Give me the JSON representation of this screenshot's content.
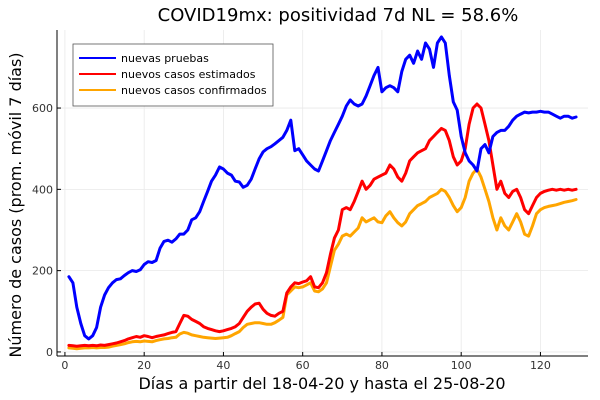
{
  "chart_data": {
    "type": "line",
    "title": "COVID19mx: positividad 7d NL = 58.6%",
    "xlabel": "Días a partir del 18-04-20 y hasta el 25-08-20",
    "ylabel": "Número de casos (prom. móvil 7 días)",
    "xlim": [
      -2,
      132
    ],
    "ylim": [
      -10,
      792
    ],
    "xticks": [
      0,
      20,
      40,
      60,
      80,
      100,
      120
    ],
    "yticks": [
      0,
      200,
      400,
      600
    ],
    "grid": true,
    "legend_position": "top-left",
    "series": [
      {
        "name": "nuevas pruebas",
        "color": "#0000ff",
        "x": [
          1,
          2,
          3,
          4,
          5,
          6,
          7,
          8,
          9,
          10,
          11,
          12,
          13,
          14,
          15,
          16,
          17,
          18,
          19,
          20,
          21,
          22,
          23,
          24,
          25,
          26,
          27,
          28,
          29,
          30,
          31,
          32,
          33,
          34,
          35,
          36,
          37,
          38,
          39,
          40,
          41,
          42,
          43,
          44,
          45,
          46,
          47,
          48,
          49,
          50,
          51,
          52,
          53,
          54,
          55,
          56,
          57,
          58,
          59,
          60,
          61,
          62,
          63,
          64,
          65,
          66,
          67,
          68,
          69,
          70,
          71,
          72,
          73,
          74,
          75,
          76,
          77,
          78,
          79,
          80,
          81,
          82,
          83,
          84,
          85,
          86,
          87,
          88,
          89,
          90,
          91,
          92,
          93,
          94,
          95,
          96,
          97,
          98,
          99,
          100,
          101,
          102,
          103,
          104,
          105,
          106,
          107,
          108,
          109,
          110,
          111,
          112,
          113,
          114,
          115,
          116,
          117,
          118,
          119,
          120,
          121,
          122,
          123,
          124,
          125,
          126,
          127,
          128,
          129
        ],
        "y": [
          185,
          170,
          110,
          70,
          40,
          32,
          40,
          60,
          110,
          140,
          158,
          170,
          178,
          180,
          188,
          195,
          200,
          198,
          202,
          215,
          222,
          220,
          225,
          255,
          272,
          275,
          270,
          278,
          290,
          290,
          300,
          325,
          330,
          345,
          370,
          395,
          420,
          435,
          455,
          450,
          440,
          435,
          420,
          418,
          405,
          410,
          425,
          450,
          475,
          492,
          500,
          505,
          512,
          520,
          528,
          545,
          570,
          495,
          500,
          485,
          470,
          460,
          450,
          445,
          470,
          495,
          520,
          540,
          560,
          580,
          605,
          620,
          610,
          605,
          610,
          630,
          655,
          680,
          700,
          640,
          650,
          655,
          650,
          640,
          690,
          720,
          730,
          710,
          740,
          720,
          760,
          745,
          700,
          760,
          775,
          760,
          680,
          615,
          595,
          530,
          490,
          470,
          460,
          445,
          500,
          510,
          490,
          530,
          540,
          545,
          545,
          555,
          570,
          580,
          585,
          590,
          588,
          590,
          590,
          592,
          590,
          590,
          585,
          580,
          575,
          580,
          580,
          575,
          578
        ]
      },
      {
        "name": "nuevos casos estimados",
        "color": "#ff0000",
        "x": [
          1,
          2,
          3,
          4,
          5,
          6,
          7,
          8,
          9,
          10,
          11,
          12,
          13,
          14,
          15,
          16,
          17,
          18,
          19,
          20,
          21,
          22,
          23,
          24,
          25,
          26,
          27,
          28,
          29,
          30,
          31,
          32,
          33,
          34,
          35,
          36,
          37,
          38,
          39,
          40,
          41,
          42,
          43,
          44,
          45,
          46,
          47,
          48,
          49,
          50,
          51,
          52,
          53,
          54,
          55,
          56,
          57,
          58,
          59,
          60,
          61,
          62,
          63,
          64,
          65,
          66,
          67,
          68,
          69,
          70,
          71,
          72,
          73,
          74,
          75,
          76,
          77,
          78,
          79,
          80,
          81,
          82,
          83,
          84,
          85,
          86,
          87,
          88,
          89,
          90,
          91,
          92,
          93,
          94,
          95,
          96,
          97,
          98,
          99,
          100,
          101,
          102,
          103,
          104,
          105,
          106,
          107,
          108,
          109,
          110,
          111,
          112,
          113,
          114,
          115,
          116,
          117,
          118,
          119,
          120,
          121,
          122,
          123,
          124,
          125,
          126,
          127,
          128,
          129
        ],
        "y": [
          16,
          15,
          14,
          15,
          16,
          15,
          16,
          15,
          17,
          16,
          18,
          20,
          22,
          25,
          28,
          32,
          35,
          38,
          36,
          40,
          38,
          35,
          38,
          40,
          42,
          45,
          48,
          50,
          70,
          90,
          88,
          80,
          75,
          70,
          62,
          58,
          55,
          52,
          50,
          52,
          55,
          58,
          62,
          70,
          85,
          100,
          110,
          118,
          120,
          105,
          95,
          90,
          88,
          95,
          100,
          145,
          160,
          170,
          168,
          172,
          175,
          185,
          160,
          158,
          170,
          195,
          240,
          280,
          300,
          350,
          355,
          350,
          370,
          395,
          420,
          400,
          410,
          425,
          430,
          435,
          440,
          460,
          450,
          430,
          420,
          440,
          470,
          480,
          490,
          495,
          500,
          520,
          530,
          540,
          550,
          545,
          520,
          480,
          460,
          470,
          500,
          560,
          600,
          610,
          600,
          560,
          520,
          460,
          400,
          420,
          390,
          380,
          395,
          400,
          380,
          350,
          340,
          360,
          380,
          390,
          395,
          398,
          400,
          398,
          400,
          398,
          400,
          398,
          400
        ],
        "y_note": "values read from plotted curve"
      },
      {
        "name": "nuevos casos confirmados",
        "color": "#ffa500",
        "x": [
          1,
          2,
          3,
          4,
          5,
          6,
          7,
          8,
          9,
          10,
          11,
          12,
          13,
          14,
          15,
          16,
          17,
          18,
          19,
          20,
          21,
          22,
          23,
          24,
          25,
          26,
          27,
          28,
          29,
          30,
          31,
          32,
          33,
          34,
          35,
          36,
          37,
          38,
          39,
          40,
          41,
          42,
          43,
          44,
          45,
          46,
          47,
          48,
          49,
          50,
          51,
          52,
          53,
          54,
          55,
          56,
          57,
          58,
          59,
          60,
          61,
          62,
          63,
          64,
          65,
          66,
          67,
          68,
          69,
          70,
          71,
          72,
          73,
          74,
          75,
          76,
          77,
          78,
          79,
          80,
          81,
          82,
          83,
          84,
          85,
          86,
          87,
          88,
          89,
          90,
          91,
          92,
          93,
          94,
          95,
          96,
          97,
          98,
          99,
          100,
          101,
          102,
          103,
          104,
          105,
          106,
          107,
          108,
          109,
          110,
          111,
          112,
          113,
          114,
          115,
          116,
          117,
          118,
          119,
          120,
          121,
          122,
          123,
          124,
          125,
          126,
          127,
          128,
          129
        ],
        "y": [
          10,
          9,
          8,
          9,
          10,
          10,
          11,
          10,
          11,
          11,
          12,
          14,
          16,
          18,
          20,
          23,
          25,
          26,
          25,
          27,
          26,
          25,
          28,
          30,
          32,
          33,
          35,
          36,
          44,
          48,
          46,
          42,
          40,
          38,
          36,
          35,
          34,
          33,
          34,
          35,
          36,
          40,
          45,
          50,
          60,
          68,
          70,
          72,
          72,
          70,
          68,
          68,
          72,
          78,
          85,
          140,
          150,
          160,
          158,
          160,
          165,
          170,
          150,
          148,
          155,
          170,
          210,
          250,
          265,
          285,
          290,
          285,
          295,
          305,
          330,
          320,
          325,
          330,
          320,
          318,
          335,
          345,
          330,
          318,
          310,
          320,
          340,
          350,
          360,
          365,
          370,
          380,
          385,
          390,
          400,
          395,
          380,
          360,
          345,
          355,
          380,
          420,
          440,
          450,
          430,
          400,
          370,
          330,
          300,
          330,
          310,
          300,
          320,
          340,
          320,
          290,
          285,
          310,
          340,
          350,
          355,
          358,
          360,
          362,
          365,
          368,
          370,
          372,
          375
        ]
      }
    ]
  }
}
